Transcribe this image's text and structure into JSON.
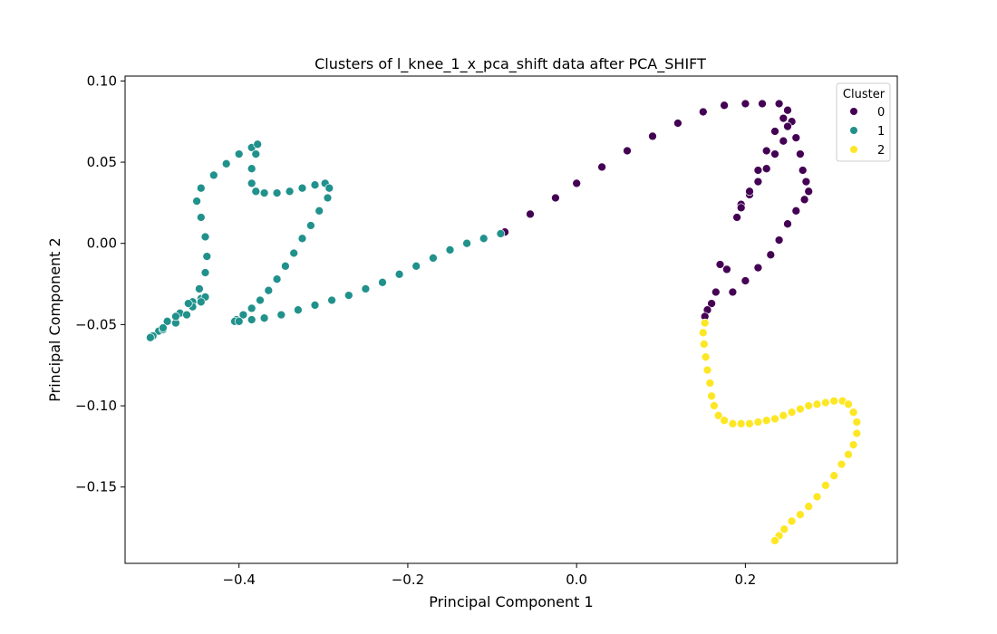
{
  "chart_data": {
    "type": "scatter",
    "title": "Clusters of l_knee_1_x_pca_shift data after PCA_SHIFT",
    "xlabel": "Principal Component 1",
    "ylabel": "Principal Component 2",
    "xlim": [
      -0.535,
      0.38
    ],
    "ylim": [
      -0.197,
      0.103
    ],
    "xticks": [
      -0.4,
      -0.2,
      0.0,
      0.2
    ],
    "xtick_labels": [
      "−0.4",
      "−0.2",
      "0.0",
      "0.2"
    ],
    "yticks": [
      -0.15,
      -0.1,
      -0.05,
      0.0,
      0.05,
      0.1
    ],
    "ytick_labels": [
      "−0.15",
      "−0.10",
      "−0.05",
      "0.00",
      "0.05",
      "0.10"
    ],
    "grid": false,
    "legend": {
      "title": "Cluster",
      "placement": "top-right",
      "entries": [
        {
          "label": "0",
          "color": "#440154"
        },
        {
          "label": "1",
          "color": "#21918c"
        },
        {
          "label": "2",
          "color": "#fde725"
        }
      ]
    },
    "series": [
      {
        "name": "0",
        "color": "#440154",
        "x": [
          -0.085,
          -0.055,
          -0.025,
          0.0,
          0.03,
          0.06,
          0.09,
          0.12,
          0.15,
          0.175,
          0.2,
          0.22,
          0.24,
          0.25,
          0.255,
          0.26,
          0.265,
          0.268,
          0.272,
          0.275,
          0.27,
          0.26,
          0.25,
          0.24,
          0.23,
          0.215,
          0.2,
          0.19,
          0.195,
          0.205,
          0.215,
          0.225,
          0.235,
          0.245,
          0.25,
          0.245,
          0.235,
          0.225,
          0.215,
          0.205,
          0.195,
          0.185,
          0.178,
          0.17,
          0.165,
          0.16,
          0.155,
          0.152
        ],
        "y": [
          0.007,
          0.018,
          0.028,
          0.037,
          0.047,
          0.057,
          0.066,
          0.074,
          0.081,
          0.085,
          0.086,
          0.086,
          0.086,
          0.082,
          0.075,
          0.065,
          0.055,
          0.045,
          0.038,
          0.032,
          0.027,
          0.02,
          0.012,
          0.002,
          -0.007,
          -0.015,
          -0.023,
          0.016,
          0.024,
          0.03,
          0.038,
          0.046,
          0.055,
          0.063,
          0.072,
          0.077,
          0.069,
          0.057,
          0.045,
          0.032,
          0.022,
          -0.03,
          -0.016,
          -0.013,
          -0.03,
          -0.037,
          -0.041,
          -0.045
        ]
      },
      {
        "name": "1",
        "color": "#21918c",
        "x": [
          -0.505,
          -0.495,
          -0.485,
          -0.47,
          -0.455,
          -0.445,
          -0.44,
          -0.445,
          -0.455,
          -0.462,
          -0.475,
          -0.49,
          -0.502,
          -0.505,
          -0.49,
          -0.475,
          -0.46,
          -0.447,
          -0.44,
          -0.438,
          -0.44,
          -0.445,
          -0.45,
          -0.445,
          -0.43,
          -0.415,
          -0.4,
          -0.385,
          -0.378,
          -0.38,
          -0.385,
          -0.385,
          -0.38,
          -0.37,
          -0.355,
          -0.34,
          -0.325,
          -0.31,
          -0.298,
          -0.293,
          -0.295,
          -0.305,
          -0.315,
          -0.325,
          -0.335,
          -0.345,
          -0.355,
          -0.365,
          -0.375,
          -0.385,
          -0.395,
          -0.403,
          -0.405,
          -0.4,
          -0.385,
          -0.37,
          -0.35,
          -0.33,
          -0.31,
          -0.29,
          -0.27,
          -0.25,
          -0.23,
          -0.21,
          -0.19,
          -0.17,
          -0.15,
          -0.13,
          -0.11,
          -0.09
        ],
        "y": [
          -0.058,
          -0.054,
          -0.048,
          -0.043,
          -0.036,
          -0.034,
          -0.033,
          -0.036,
          -0.039,
          -0.044,
          -0.049,
          -0.053,
          -0.057,
          -0.058,
          -0.052,
          -0.045,
          -0.037,
          -0.028,
          -0.018,
          -0.008,
          0.004,
          0.016,
          0.026,
          0.034,
          0.042,
          0.049,
          0.055,
          0.059,
          0.061,
          0.055,
          0.046,
          0.037,
          0.032,
          0.031,
          0.031,
          0.032,
          0.034,
          0.036,
          0.037,
          0.034,
          0.028,
          0.02,
          0.011,
          0.003,
          -0.006,
          -0.014,
          -0.022,
          -0.029,
          -0.035,
          -0.04,
          -0.044,
          -0.047,
          -0.048,
          -0.048,
          -0.047,
          -0.046,
          -0.044,
          -0.041,
          -0.038,
          -0.035,
          -0.032,
          -0.028,
          -0.024,
          -0.019,
          -0.014,
          -0.009,
          -0.004,
          0.0,
          0.003,
          0.006
        ]
      },
      {
        "name": "2",
        "color": "#fde725",
        "x": [
          0.152,
          0.15,
          0.151,
          0.153,
          0.155,
          0.158,
          0.16,
          0.163,
          0.168,
          0.175,
          0.185,
          0.195,
          0.205,
          0.215,
          0.225,
          0.235,
          0.245,
          0.255,
          0.265,
          0.275,
          0.285,
          0.295,
          0.305,
          0.315,
          0.322,
          0.328,
          0.332,
          0.332,
          0.328,
          0.322,
          0.314,
          0.305,
          0.295,
          0.285,
          0.275,
          0.265,
          0.255,
          0.246,
          0.24,
          0.235
        ],
        "y": [
          -0.049,
          -0.055,
          -0.062,
          -0.07,
          -0.078,
          -0.086,
          -0.094,
          -0.1,
          -0.106,
          -0.109,
          -0.111,
          -0.111,
          -0.111,
          -0.11,
          -0.109,
          -0.108,
          -0.106,
          -0.104,
          -0.102,
          -0.1,
          -0.099,
          -0.098,
          -0.097,
          -0.097,
          -0.099,
          -0.104,
          -0.11,
          -0.117,
          -0.124,
          -0.13,
          -0.136,
          -0.143,
          -0.149,
          -0.156,
          -0.162,
          -0.167,
          -0.171,
          -0.176,
          -0.18,
          -0.183
        ]
      }
    ]
  }
}
